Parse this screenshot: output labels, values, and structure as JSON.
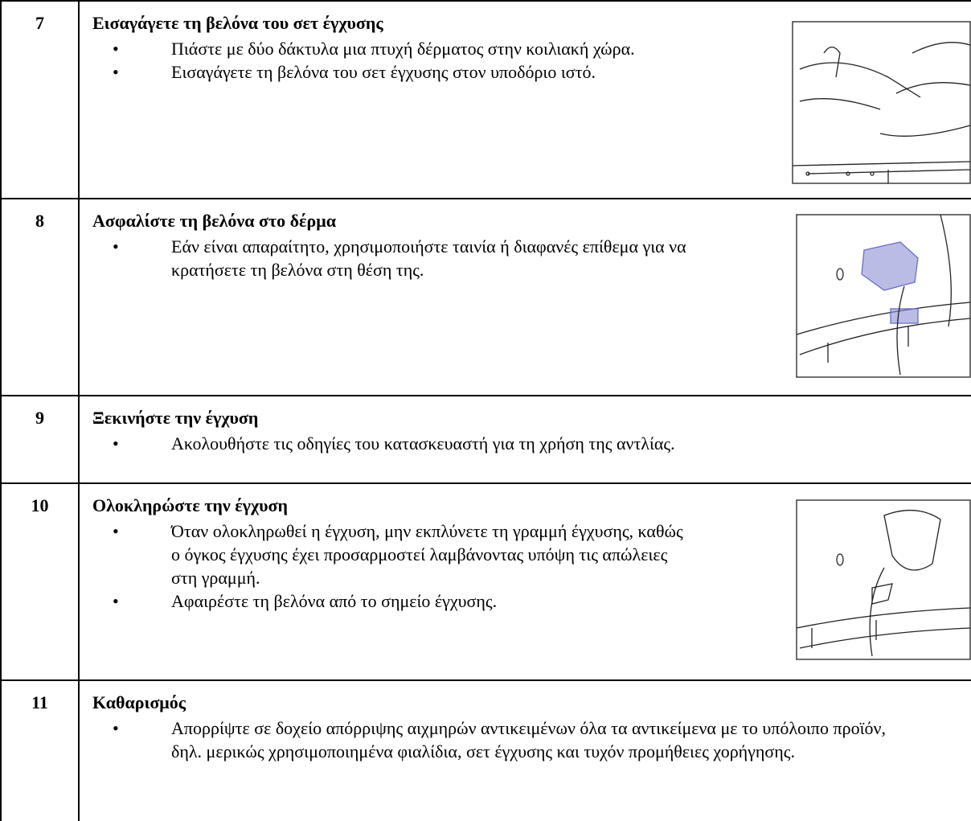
{
  "steps": [
    {
      "number": "7",
      "title": "Εισαγάγετε τη βελόνα του σετ έγχυσης",
      "bullets": [
        "Πιάστε με δύο δάκτυλα μια πτυχή δέρματος στην κοιλιακή χώρα.",
        "Εισαγάγετε τη βελόνα του σετ έγχυσης στον υποδόριο ιστό."
      ]
    },
    {
      "number": "8",
      "title": "Ασφαλίστε τη βελόνα στο δέρμα",
      "bullets": [
        "Εάν είναι απαραίτητο, χρησιμοποιήστε ταινία ή διαφανές επίθεμα για να κρατήσετε τη βελόνα στη θέση της."
      ]
    },
    {
      "number": "9",
      "title": "Ξεκινήστε την έγχυση",
      "bullets": [
        "Ακολουθήστε τις οδηγίες του κατασκευαστή για τη χρήση της αντλίας."
      ]
    },
    {
      "number": "10",
      "title": "Ολοκληρώστε την έγχυση",
      "bullets": [
        "Όταν ολοκληρωθεί η έγχυση, μην εκπλύνετε τη γραμμή έγχυσης, καθώς ο όγκος έγχυσης έχει προσαρμοστεί λαμβάνοντας υπόψη τις απώλειες στη γραμμή.",
        "Αφαιρέστε τη βελόνα από το σημείο έγχυσης."
      ]
    },
    {
      "number": "11",
      "title": "Καθαρισμός",
      "bullets": [
        "Απορρίψτε σε δοχείο απόρριψης αιχμηρών αντικειμένων όλα τα αντικείμενα με το υπόλοιπο προϊόν, δηλ. μερικώς χρησιμοποιημένα φιαλίδια, σετ έγχυσης και τυχόν προμήθειες χορήγησης."
      ]
    }
  ]
}
